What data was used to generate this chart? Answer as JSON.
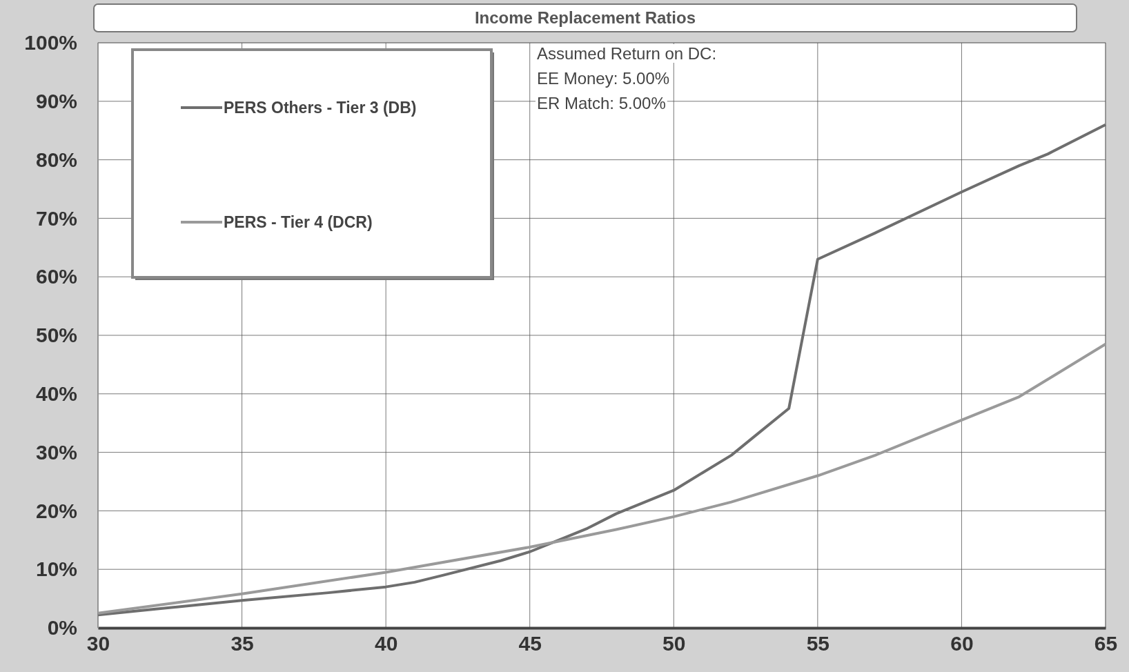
{
  "chart_data": {
    "type": "line",
    "title": "Income Replacement Ratios",
    "series": [
      {
        "name": "PERS Others - Tier 3 (DB)",
        "color": "#6e6e6e",
        "x": [
          30,
          32,
          35,
          38,
          40,
          41,
          42,
          44,
          45,
          46,
          47,
          48,
          49,
          50,
          51,
          52,
          53,
          54,
          55,
          57,
          60,
          62,
          63,
          65
        ],
        "values": [
          2.2,
          3.2,
          4.7,
          6.0,
          7.0,
          7.8,
          9.0,
          11.5,
          13,
          15,
          17,
          19.5,
          21.5,
          23.5,
          26.5,
          29.5,
          33.5,
          37.5,
          63,
          67.5,
          74.5,
          79,
          81,
          86
        ]
      },
      {
        "name": "PERS - Tier 4 (DCR)",
        "color": "#9a9a9a",
        "x": [
          30,
          35,
          40,
          45,
          48,
          50,
          52,
          55,
          57,
          60,
          62,
          65
        ],
        "values": [
          2.5,
          5.8,
          9.5,
          13.8,
          16.8,
          19,
          21.5,
          26,
          29.5,
          35.5,
          39.5,
          48.5
        ]
      }
    ],
    "xlim": [
      30,
      65
    ],
    "xticks": [
      30,
      35,
      40,
      45,
      50,
      55,
      60,
      65
    ],
    "ylim": [
      0,
      100
    ],
    "yticks": [
      {
        "value": 0,
        "label": "0%"
      },
      {
        "value": 10,
        "label": "10%"
      },
      {
        "value": 20,
        "label": "20%"
      },
      {
        "value": 30,
        "label": "30%"
      },
      {
        "value": 40,
        "label": "40%"
      },
      {
        "value": 50,
        "label": "50%"
      },
      {
        "value": 60,
        "label": "60%"
      },
      {
        "value": 70,
        "label": "70%"
      },
      {
        "value": 80,
        "label": "80%"
      },
      {
        "value": 90,
        "label": "90%"
      },
      {
        "value": 100,
        "label": "100%"
      }
    ],
    "grid": true,
    "legend": "top left",
    "marker": "none",
    "line_style": "solid",
    "annotations": [
      "Assumed Return on DC:",
      "EE Money: 5.00%",
      "ER Match: 5.00%"
    ]
  }
}
